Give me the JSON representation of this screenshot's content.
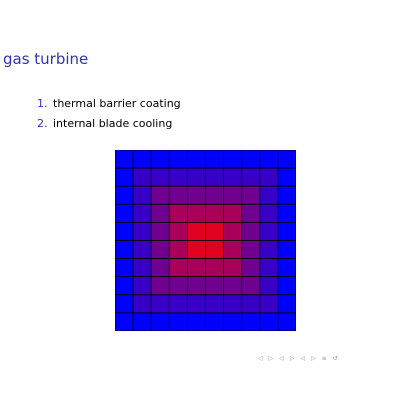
{
  "slide": {
    "title": "gas turbine",
    "items": [
      {
        "number": "1.",
        "text": "thermal barrier coating"
      },
      {
        "number": "2.",
        "text": "internal blade cooling"
      }
    ]
  },
  "heatmap": {
    "rows": 10,
    "cols": 10,
    "cold_color": "#0000ff",
    "hot_color": "#e00020",
    "line_color": "#000000",
    "levels": [
      [
        0,
        0,
        0,
        0,
        0,
        0,
        0,
        0,
        0,
        0
      ],
      [
        0,
        1,
        1,
        1,
        1,
        1,
        1,
        1,
        1,
        0
      ],
      [
        0,
        1,
        2,
        2,
        2,
        2,
        2,
        2,
        1,
        0
      ],
      [
        0,
        1,
        2,
        3,
        3,
        3,
        3,
        2,
        1,
        0
      ],
      [
        0,
        1,
        2,
        3,
        4,
        4,
        3,
        2,
        1,
        0
      ],
      [
        0,
        1,
        2,
        3,
        4,
        4,
        3,
        2,
        1,
        0
      ],
      [
        0,
        1,
        2,
        3,
        3,
        3,
        3,
        2,
        1,
        0
      ],
      [
        0,
        1,
        2,
        2,
        2,
        2,
        2,
        2,
        1,
        0
      ],
      [
        0,
        1,
        1,
        1,
        1,
        1,
        1,
        1,
        1,
        0
      ],
      [
        0,
        0,
        0,
        0,
        0,
        0,
        0,
        0,
        0,
        0
      ]
    ]
  },
  "navigation": {
    "icons": [
      "nav-prev-frame-icon",
      "nav-next-frame-icon",
      "nav-prev-subsection-icon",
      "nav-next-subsection-icon",
      "nav-prev-section-icon",
      "nav-next-section-icon",
      "nav-align-icon",
      "nav-search-icon"
    ],
    "color": "#8c8cc8"
  }
}
